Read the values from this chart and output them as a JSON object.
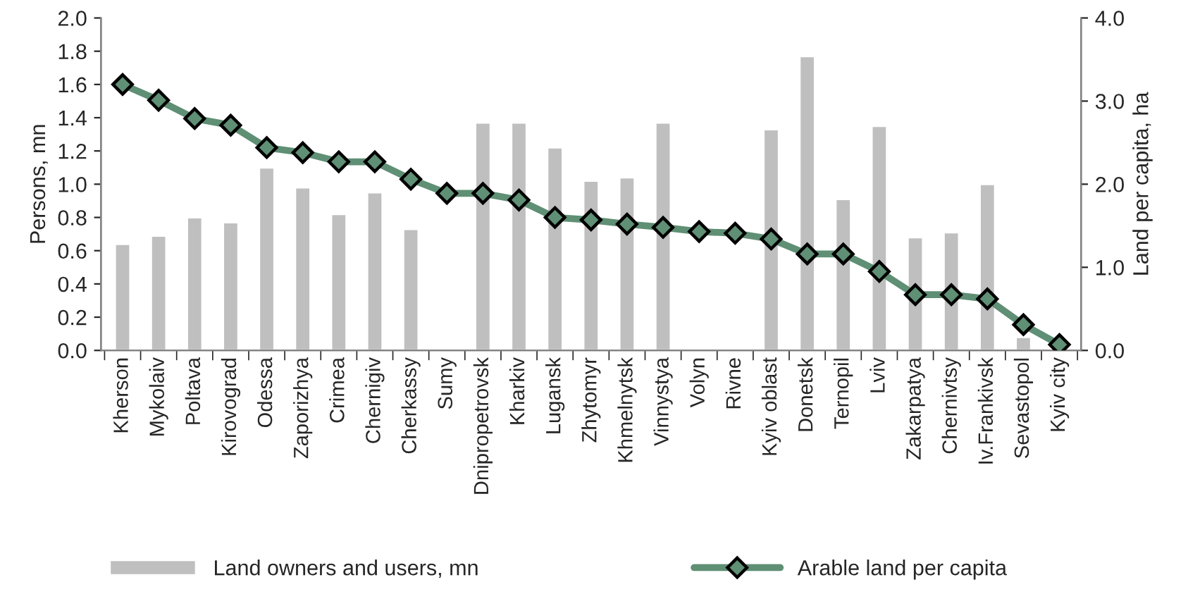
{
  "chart_data": {
    "type": "bar",
    "ylabel": "Persons, mn",
    "y2label": "Land per capita, ha",
    "categories": [
      "Kherson",
      "Mykolaiv",
      "Poltava",
      "Kirovograd",
      "Odessa",
      "Zaporizhya",
      "Crimea",
      "Chernigiv",
      "Cherkassy",
      "Sumy",
      "Dnipropetrovsk",
      "Kharkiv",
      "Lugansk",
      "Zhytomyr",
      "Khmelnytsk",
      "Vinnystya",
      "Volyn",
      "Rivne",
      "Kyiv oblast",
      "Donetsk",
      "Ternopil",
      "Lviv",
      "Zakarpatya",
      "Chernivtsy",
      "Iv.Frankivsk",
      "Sevastopol",
      "Kyiv city"
    ],
    "series": [
      {
        "name": "Land owners and users, mn",
        "color": "#bfbfbf",
        "values": [
          0.64,
          0.69,
          0.8,
          0.77,
          1.1,
          0.98,
          0.82,
          0.95,
          0.73,
          null,
          1.37,
          1.37,
          1.22,
          1.02,
          1.04,
          1.37,
          null,
          null,
          1.33,
          1.77,
          0.91,
          1.35,
          0.68,
          0.71,
          1.0,
          0.08,
          null
        ]
      },
      {
        "name": "Arable land per capita",
        "type": "line",
        "axis": "y2",
        "color": "#5f8f74",
        "marker": "diamond",
        "line_style": "solid",
        "values": [
          3.2,
          3.01,
          2.79,
          2.71,
          2.44,
          2.38,
          2.27,
          2.27,
          2.06,
          1.89,
          1.89,
          1.81,
          1.6,
          1.57,
          1.52,
          1.48,
          1.43,
          1.41,
          1.34,
          1.16,
          1.16,
          0.95,
          0.67,
          0.67,
          0.62,
          0.31,
          0.07
        ]
      }
    ],
    "ylim": [
      0,
      2.0
    ],
    "yticks": [
      {
        "value": 0,
        "label": "0.0"
      },
      {
        "value": 0.2,
        "label": "0.2"
      },
      {
        "value": 0.4,
        "label": "0.4"
      },
      {
        "value": 0.6,
        "label": "0.6"
      },
      {
        "value": 0.8,
        "label": "0.8"
      },
      {
        "value": 1.0,
        "label": "1.0"
      },
      {
        "value": 1.2,
        "label": "1.2"
      },
      {
        "value": 1.4,
        "label": "1.4"
      },
      {
        "value": 1.6,
        "label": "1.6"
      },
      {
        "value": 1.8,
        "label": "1.8"
      },
      {
        "value": 2.0,
        "label": "2.0"
      }
    ],
    "y2lim": [
      0,
      4.0
    ],
    "y2ticks": [
      {
        "value": 0,
        "label": "0.0"
      },
      {
        "value": 1.0,
        "label": "1.0"
      },
      {
        "value": 2.0,
        "label": "2.0"
      },
      {
        "value": 3.0,
        "label": "3.0"
      },
      {
        "value": 4.0,
        "label": "4.0"
      }
    ],
    "grid": false,
    "legend": "bottom"
  }
}
